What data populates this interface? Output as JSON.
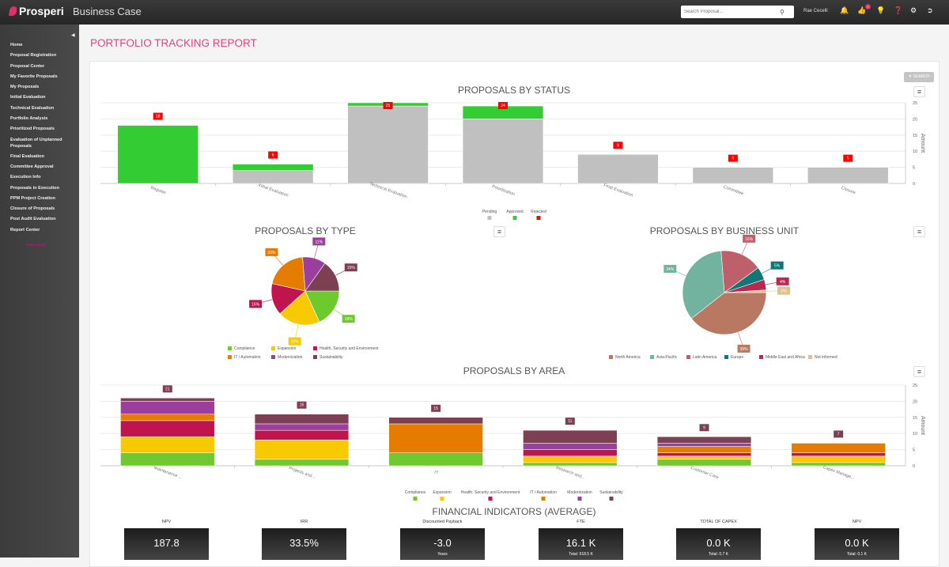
{
  "header": {
    "logo": "Prosperi",
    "app_title": "Business Case",
    "search_placeholder": "Search Proposal...",
    "user": "Rae Cecelli",
    "badge_count": "9"
  },
  "sidebar": {
    "items": [
      "Home",
      "Proposal Registration",
      "Proposal Center",
      "My Favorite Proposals",
      "My Proposals",
      "Initial Evaluation",
      "Technical Evaluation",
      "Portfolio Analysis",
      "Prioritized Proposals",
      "Evaluation of Unplanned Proposals",
      "Final Evaluation",
      "Committee Approval",
      "Execution Info",
      "Proposals in Execution",
      "PPM Project Creation",
      "Closure of Proposals",
      "Post Audit Evaluation",
      "Report Center"
    ],
    "footer": "teams ideas"
  },
  "page": {
    "title": "PORTFOLIO TRACKING REPORT",
    "search_button": "SEARCH"
  },
  "chart_data": [
    {
      "type": "bar",
      "stacked": true,
      "title": "PROPOSALS BY STATUS",
      "ylabel": "Amount",
      "ylim": [
        0,
        25
      ],
      "yticks": [
        0,
        5,
        10,
        15,
        20,
        25
      ],
      "categories": [
        "Register",
        "Initial Evaluation",
        "Technical Evaluation",
        "Prioritization",
        "Final Evaluation",
        "Committee",
        "Closure"
      ],
      "series": [
        {
          "name": "Pending",
          "color": "#c0c0c0",
          "values": [
            0,
            4,
            24,
            20,
            9,
            5,
            5
          ]
        },
        {
          "name": "Approved",
          "color": "#33cc33",
          "values": [
            18,
            2,
            1,
            4,
            0,
            0,
            0
          ]
        },
        {
          "name": "Rejected",
          "color": "#ff0000",
          "values": [
            0,
            0,
            0,
            0,
            0,
            0,
            0
          ]
        }
      ],
      "totals": [
        18,
        6,
        25,
        24,
        9,
        5,
        5
      ],
      "total_label_color": "#ff0000"
    },
    {
      "type": "pie",
      "title": "PROPOSALS BY TYPE",
      "labels": [
        "Compliance",
        "Expansion",
        "Health, Security and Environment",
        "IT / Automation",
        "Modernization",
        "Sustainability"
      ],
      "values": [
        18,
        20,
        15,
        20,
        11,
        15
      ],
      "colors": [
        "#6dc92e",
        "#f7c900",
        "#c0144f",
        "#e57c00",
        "#9c3f9c",
        "#7d3f52"
      ]
    },
    {
      "type": "pie",
      "title": "PROPOSALS BY BUSINESS UNIT",
      "labels": [
        "North America",
        "Asia-Pacific",
        "Latin America",
        "Europe",
        "Middle East and Africa",
        "Not informed"
      ],
      "values": [
        39,
        34,
        16,
        5,
        4,
        1
      ],
      "colors": [
        "#b87862",
        "#72b3a0",
        "#bf5f6a",
        "#0f7777",
        "#b8294d",
        "#dcc28e"
      ]
    },
    {
      "type": "bar",
      "stacked": true,
      "title": "PROPOSALS BY AREA",
      "ylabel": "Amount",
      "ylim": [
        0,
        25
      ],
      "yticks": [
        0,
        5,
        10,
        15,
        20,
        25
      ],
      "categories": [
        "Maintenance ...",
        "Projects and...",
        "IT",
        "Research and...",
        "Customer Care",
        "Capex Manage..."
      ],
      "series": [
        {
          "name": "Compliance",
          "color": "#6dc92e",
          "values": [
            4,
            2,
            4,
            1,
            2,
            1
          ]
        },
        {
          "name": "Expansion",
          "color": "#f7c900",
          "values": [
            5,
            6,
            0,
            2,
            1,
            2
          ]
        },
        {
          "name": "Health, Security and Environment",
          "color": "#c0144f",
          "values": [
            5,
            3,
            0,
            2,
            1,
            1
          ]
        },
        {
          "name": "IT / Automation",
          "color": "#e57c00",
          "values": [
            2,
            0,
            9,
            0,
            2,
            3
          ]
        },
        {
          "name": "Modernization",
          "color": "#9c3f9c",
          "values": [
            4,
            2,
            0,
            2,
            1,
            0
          ]
        },
        {
          "name": "Sustainability",
          "color": "#7d3f52",
          "values": [
            1,
            3,
            2,
            4,
            2,
            0
          ]
        }
      ],
      "totals": [
        21,
        16,
        15,
        11,
        9,
        7
      ],
      "total_label_color": "#7d3f52"
    }
  ],
  "financial": {
    "title": "FINANCIAL INDICATORS (AVERAGE)",
    "items": [
      {
        "label": "NPV",
        "value": "187.8",
        "sub": ""
      },
      {
        "label": "IRR",
        "value": "33.5%",
        "sub": ""
      },
      {
        "label": "Discounted Payback",
        "value": "-3.0",
        "sub": "Years"
      },
      {
        "label": "FTE",
        "value": "16.1 K",
        "sub": "Total: 918.5 K"
      },
      {
        "label": "TOTAL OF CAPEX",
        "value": "0.0 K",
        "sub": "Total: 0.7 K"
      },
      {
        "label": "NPV",
        "value": "0.0 K",
        "sub": "Total: 0.1 K"
      }
    ]
  }
}
